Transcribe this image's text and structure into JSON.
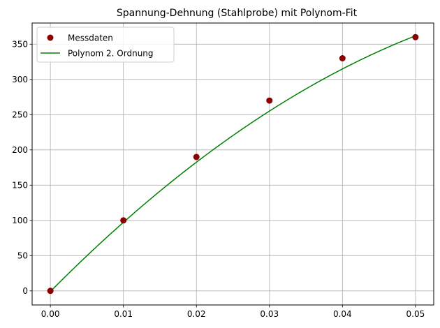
{
  "chart_data": {
    "type": "scatter",
    "title": "Spannung-Dehnung (Stahlprobe) mit Polynom-Fit",
    "xlabel": "",
    "ylabel": "",
    "xlim": [
      -0.0025,
      0.0525
    ],
    "ylim": [
      -20,
      380
    ],
    "xticks": [
      0.0,
      0.01,
      0.02,
      0.03,
      0.04,
      0.05
    ],
    "xtick_labels": [
      "0.00",
      "0.01",
      "0.02",
      "0.03",
      "0.04",
      "0.05"
    ],
    "yticks": [
      0,
      50,
      100,
      150,
      200,
      250,
      300,
      350
    ],
    "ytick_labels": [
      "0",
      "50",
      "100",
      "150",
      "200",
      "250",
      "300",
      "350"
    ],
    "grid": true,
    "legend_position": "upper-left",
    "series": [
      {
        "name": "Messdaten",
        "kind": "scatter",
        "color": "#8b0000",
        "x": [
          0.0,
          0.01,
          0.02,
          0.03,
          0.04,
          0.05
        ],
        "y": [
          0,
          100,
          190,
          270,
          330,
          360
        ]
      },
      {
        "name": "Polynom 2. Ordnung",
        "kind": "line",
        "color": "#008000",
        "polynomial_coefficients": [
          -0.9,
          10450,
          -63900
        ],
        "x_range": [
          0.0,
          0.05
        ]
      }
    ]
  }
}
